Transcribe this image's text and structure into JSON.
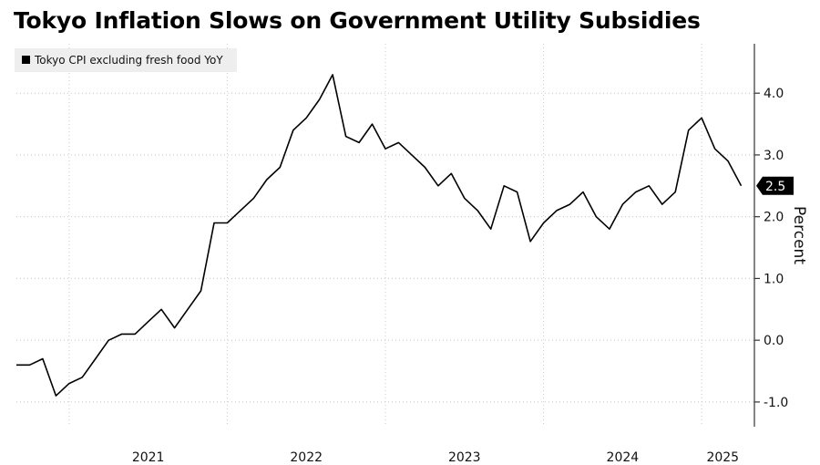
{
  "chart_data": {
    "type": "line",
    "title": "Tokyo Inflation Slows on Government Utility Subsidies",
    "ylabel": "Percent",
    "ylim": [
      -1.4,
      4.8
    ],
    "y_ticks": [
      -1.0,
      0.0,
      1.0,
      2.0,
      3.0,
      4.0
    ],
    "y_tick_labels": [
      "-1.0",
      "0.0",
      "1.0",
      "2.0",
      "3.0",
      "4.0"
    ],
    "x_tick_labels": [
      "2021",
      "2022",
      "2023",
      "2024",
      "2025"
    ],
    "x_range": [
      "2020-09",
      "2025-05"
    ],
    "grid": true,
    "legend_position": "top-left",
    "last_value_label": "2.5",
    "series": [
      {
        "name": "Tokyo CPI excluding fresh food YoY",
        "color": "#000000",
        "x": [
          "2020-09",
          "2020-10",
          "2020-11",
          "2020-12",
          "2021-01",
          "2021-02",
          "2021-03",
          "2021-04",
          "2021-05",
          "2021-06",
          "2021-07",
          "2021-08",
          "2021-09",
          "2021-10",
          "2021-11",
          "2021-12",
          "2022-01",
          "2022-02",
          "2022-03",
          "2022-04",
          "2022-05",
          "2022-06",
          "2022-07",
          "2022-08",
          "2022-09",
          "2022-10",
          "2022-11",
          "2022-12",
          "2023-01",
          "2023-02",
          "2023-03",
          "2023-04",
          "2023-05",
          "2023-06",
          "2023-07",
          "2023-08",
          "2023-09",
          "2023-10",
          "2023-11",
          "2023-12",
          "2024-01",
          "2024-02",
          "2024-03",
          "2024-04",
          "2024-05",
          "2024-06",
          "2024-07",
          "2024-08",
          "2024-09",
          "2024-10",
          "2024-11",
          "2024-12",
          "2025-01",
          "2025-02",
          "2025-03",
          "2025-04"
        ],
        "values": [
          -0.4,
          -0.4,
          -0.3,
          -0.9,
          -0.7,
          -0.6,
          -0.3,
          0.0,
          0.1,
          0.1,
          0.3,
          0.5,
          0.2,
          0.5,
          0.8,
          1.9,
          1.9,
          2.1,
          2.3,
          2.6,
          2.8,
          3.4,
          3.6,
          3.9,
          4.3,
          3.3,
          3.2,
          3.5,
          3.1,
          3.2,
          3.0,
          2.8,
          2.5,
          2.7,
          2.3,
          2.1,
          1.8,
          2.5,
          2.4,
          1.6,
          1.9,
          2.1,
          2.2,
          2.4,
          2.0,
          1.8,
          2.2,
          2.4,
          2.5,
          2.2,
          2.4,
          3.4,
          3.6,
          3.1,
          2.9,
          2.5
        ]
      }
    ]
  }
}
